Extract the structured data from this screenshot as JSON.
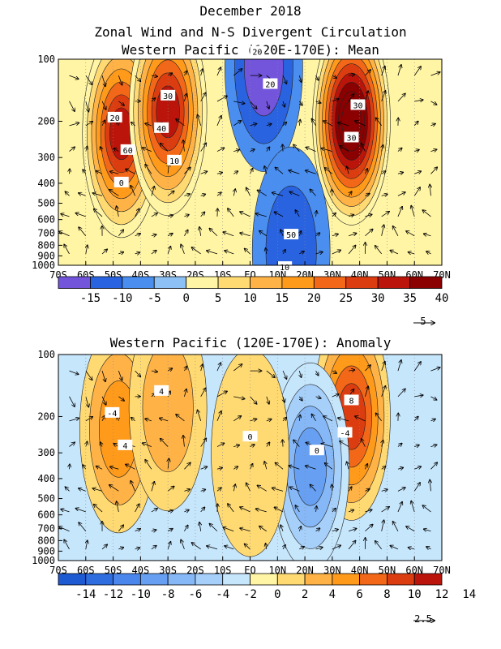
{
  "titles": {
    "line1": "December 2018",
    "line2": "Zonal Wind and N-S Divergent Circulation",
    "panel1": "Western Pacific (120E-170E): Mean",
    "panel2": "Western Pacific (120E-170E): Anomaly"
  },
  "chart_data": [
    {
      "type": "heatmap",
      "title": "Western Pacific (120E-170E): Mean",
      "x_ticks": [
        "70S",
        "60S",
        "50S",
        "40S",
        "30S",
        "20S",
        "10S",
        "EQ",
        "10N",
        "20N",
        "30N",
        "40N",
        "50N",
        "60N",
        "70N"
      ],
      "x_values": [
        -70,
        -60,
        -50,
        -40,
        -30,
        -20,
        -10,
        0,
        10,
        20,
        30,
        40,
        50,
        60,
        70
      ],
      "y_ticks": [
        "100",
        "200",
        "300",
        "400",
        "500",
        "600",
        "700",
        "800",
        "900",
        "1000"
      ],
      "y_values": [
        100,
        200,
        300,
        400,
        500,
        600,
        700,
        800,
        900,
        1000
      ],
      "y_scale": "log-pressure",
      "xlim": [
        -70,
        70
      ],
      "ylim": [
        1000,
        100
      ],
      "colorbar_ticks": [
        "-15",
        "-10",
        "-5",
        "0",
        "5",
        "10",
        "15",
        "20",
        "25",
        "30",
        "35",
        "40"
      ],
      "colorbar_colors": [
        "#7355dc",
        "#2a63e0",
        "#4a8ef0",
        "#8dc1f5",
        "#fff5a5",
        "#ffda73",
        "#ffb347",
        "#ff9a1a",
        "#f26818",
        "#dc3d10",
        "#bb150b",
        "#8b0000"
      ],
      "contour_labels": [
        "20",
        "30",
        "30",
        "20",
        "50",
        "60",
        "40",
        "30",
        "20",
        "10",
        "0",
        "10"
      ],
      "vector_scale_label": "5",
      "centers": [
        {
          "lat": -47,
          "p": 230,
          "value": 35
        },
        {
          "lat": -30,
          "p": 180,
          "value": 33
        },
        {
          "lat": 37,
          "p": 200,
          "value": 50
        },
        {
          "lat": 5,
          "p": 110,
          "value": -15
        },
        {
          "lat": 15,
          "p": 850,
          "value": -8
        }
      ]
    },
    {
      "type": "heatmap",
      "title": "Western Pacific (120E-170E): Anomaly",
      "x_ticks": [
        "70S",
        "60S",
        "50S",
        "40S",
        "30S",
        "20S",
        "10S",
        "EQ",
        "10N",
        "20N",
        "30N",
        "40N",
        "50N",
        "60N",
        "70N"
      ],
      "x_values": [
        -70,
        -60,
        -50,
        -40,
        -30,
        -20,
        -10,
        0,
        10,
        20,
        30,
        40,
        50,
        60,
        70
      ],
      "y_ticks": [
        "100",
        "200",
        "300",
        "400",
        "500",
        "600",
        "700",
        "800",
        "900",
        "1000"
      ],
      "y_values": [
        100,
        200,
        300,
        400,
        500,
        600,
        700,
        800,
        900,
        1000
      ],
      "y_scale": "log-pressure",
      "xlim": [
        -70,
        70
      ],
      "ylim": [
        1000,
        100
      ],
      "colorbar_ticks": [
        "-14",
        "-12",
        "-10",
        "-8",
        "-6",
        "-4",
        "-2",
        "0",
        "2",
        "4",
        "6",
        "8",
        "10",
        "12",
        "14"
      ],
      "colorbar_colors": [
        "#1e5ad2",
        "#2e6de0",
        "#4a86ec",
        "#67a0f2",
        "#86b8f7",
        "#a6d0fa",
        "#c6e6fc",
        "#fff5a5",
        "#ffda73",
        "#ffb347",
        "#ff9a1a",
        "#f26818",
        "#dc3d10",
        "#bb150b"
      ],
      "contour_labels": [
        "-4",
        "8",
        "0",
        "4",
        "0",
        "4",
        "-4"
      ],
      "vector_scale_label": "2.5",
      "centers": [
        {
          "lat": -48,
          "p": 230,
          "value": 6
        },
        {
          "lat": 37,
          "p": 200,
          "value": 9
        },
        {
          "lat": 22,
          "p": 350,
          "value": -7
        },
        {
          "lat": -30,
          "p": 180,
          "value": 3
        },
        {
          "lat": 0,
          "p": 300,
          "value": 2
        }
      ]
    }
  ]
}
